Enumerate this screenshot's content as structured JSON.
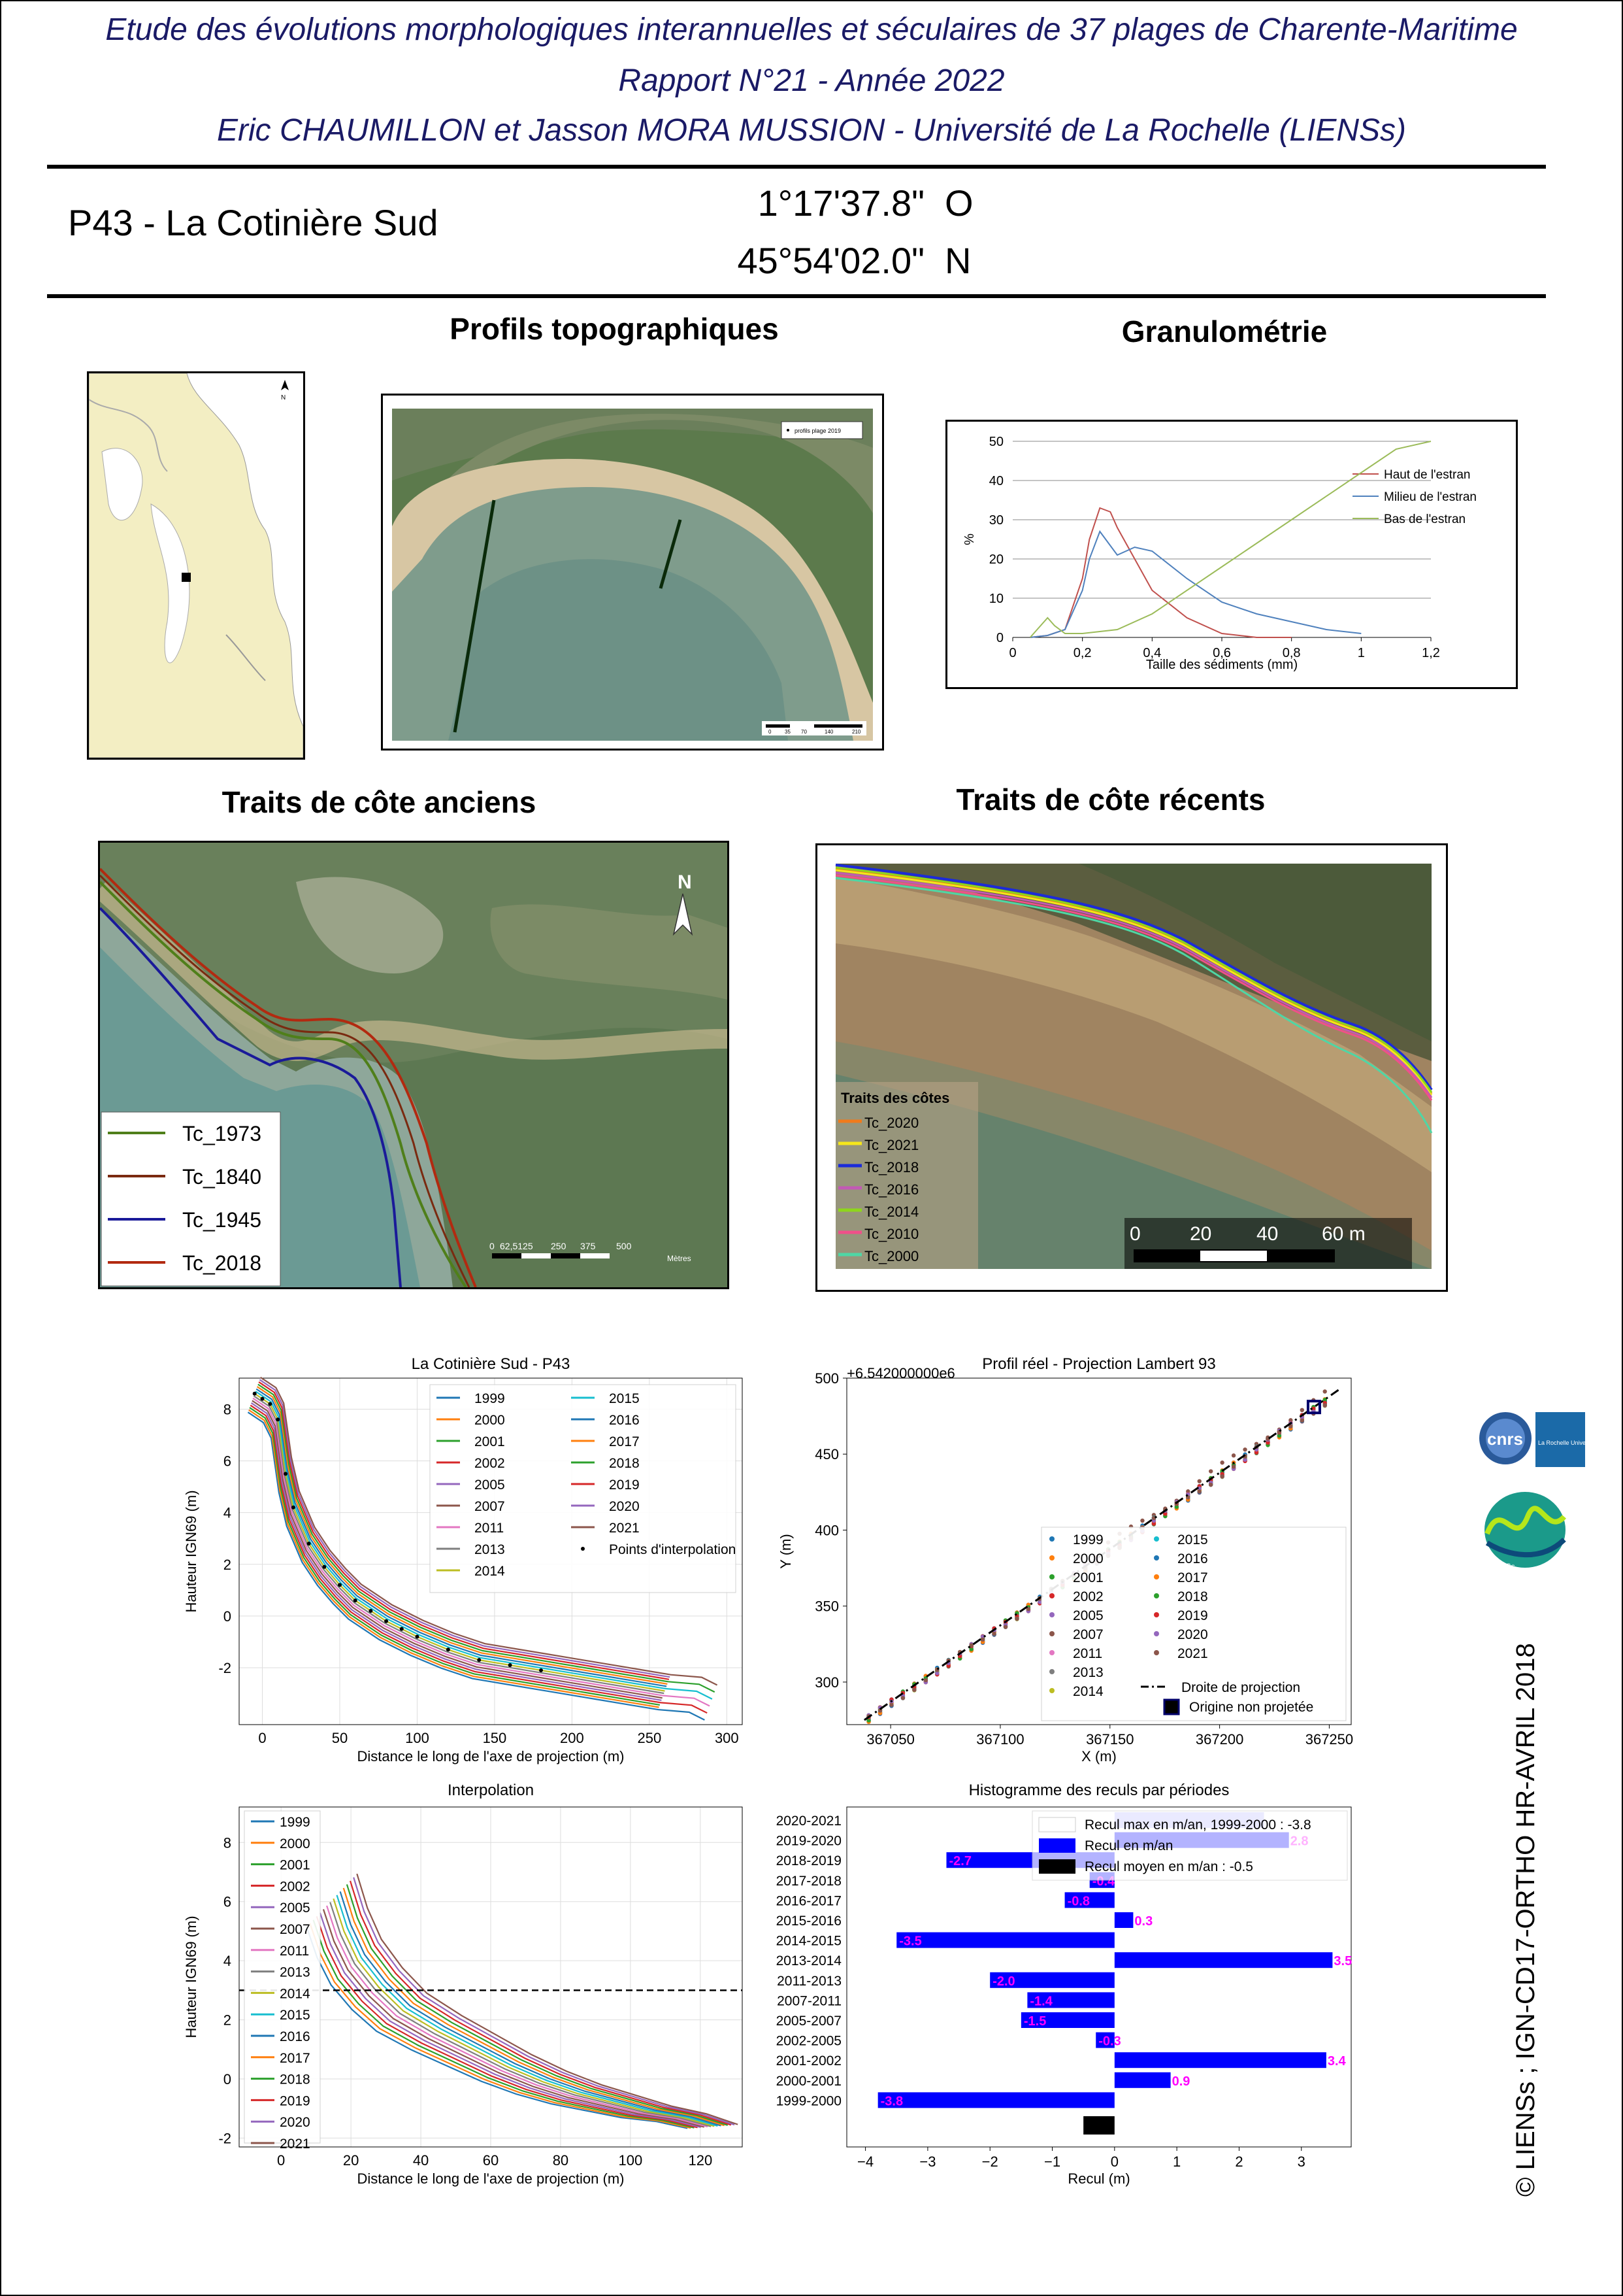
{
  "header": {
    "line1": "Etude des évolutions morphologiques interannuelles et séculaires de 37 plages de Charente-Maritime",
    "line2": "Rapport N°21 - Année 2022",
    "line3": "Eric CHAUMILLON et Jasson MORA MUSSION - Université de La Rochelle (LIENSs)"
  },
  "site": {
    "id_name": "P43 -  La Cotinière Sud",
    "lon": "1°17'37.8\"",
    "lon_dir": "O",
    "lat": "45°54'02.0\"",
    "lat_dir": "N"
  },
  "sections": {
    "profils": "Profils topographiques",
    "granulo": "Granulométrie",
    "anciens": "Traits de côte anciens",
    "recents": "Traits de côte récents"
  },
  "locator_map": {
    "north": "N"
  },
  "profile_map": {
    "legend": "profils plage 2019",
    "scale": [
      "0",
      "35",
      "70",
      "140",
      "210"
    ]
  },
  "granulometry_chart": {
    "chart_data": {
      "type": "line",
      "title": "",
      "xlabel": "Taille des sédiments (mm)",
      "ylabel": "%",
      "xlim": [
        0,
        1.2
      ],
      "ylim": [
        0,
        50
      ],
      "xticks": [
        "0",
        "0,2",
        "0,4",
        "0,6",
        "0,8",
        "1",
        "1,2"
      ],
      "yticks": [
        "0",
        "10",
        "20",
        "30",
        "40",
        "50"
      ],
      "grid": "horizontal",
      "legend_position": "right",
      "series": [
        {
          "name": "Haut de l'estran",
          "color": "#c0504d",
          "x": [
            0.05,
            0.1,
            0.15,
            0.2,
            0.22,
            0.25,
            0.28,
            0.3,
            0.35,
            0.4,
            0.5,
            0.6,
            0.7,
            0.8
          ],
          "y": [
            0,
            0.5,
            2,
            15,
            25,
            33,
            32,
            28,
            20,
            12,
            5,
            1,
            0,
            0
          ]
        },
        {
          "name": "Milieu de l'estran",
          "color": "#4f81bd",
          "x": [
            0.05,
            0.1,
            0.15,
            0.2,
            0.22,
            0.25,
            0.3,
            0.35,
            0.4,
            0.5,
            0.6,
            0.7,
            0.8,
            0.9,
            1.0
          ],
          "y": [
            0,
            0.5,
            2,
            12,
            20,
            27,
            21,
            23,
            22,
            15,
            9,
            6,
            4,
            2,
            1
          ]
        },
        {
          "name": "Bas de l'estran",
          "color": "#9bbb59",
          "x": [
            0.05,
            0.08,
            0.1,
            0.12,
            0.15,
            0.2,
            0.3,
            0.4,
            0.6,
            0.8,
            1.0,
            1.1,
            1.2
          ],
          "y": [
            0,
            3,
            5,
            3,
            1,
            1,
            2,
            6,
            18,
            30,
            42,
            48,
            52
          ]
        }
      ]
    }
  },
  "old_coastlines": {
    "north": "N",
    "legend": [
      "Tc_1973",
      "Tc_1840",
      "Tc_1945",
      "Tc_2018"
    ],
    "colors": [
      "#4f7f1a",
      "#7a2a10",
      "#1a1a99",
      "#b22a10"
    ],
    "scale": [
      "0",
      "62,5125",
      "250",
      "375",
      "500"
    ],
    "scale_unit": "Mètres"
  },
  "recent_coastlines": {
    "legend_title": "Traits des côtes",
    "legend": [
      "Tc_2020",
      "Tc_2021",
      "Tc_2018",
      "Tc_2016",
      "Tc_2014",
      "Tc_2010",
      "Tc_2000"
    ],
    "colors": [
      "#f07b1b",
      "#f5e61b",
      "#1b2bd9",
      "#c25ab5",
      "#8ed61b",
      "#f0508a",
      "#4fd6a5"
    ],
    "scale": [
      "0",
      "20",
      "40",
      "60 m"
    ]
  },
  "profiles_chart": {
    "chart_data": {
      "type": "line",
      "title": "La Cotinière  Sud - P43",
      "xlabel": "Distance le long de l'axe de projection (m)",
      "ylabel": "Hauteur IGN69 (m)",
      "xlim": [
        -15,
        310
      ],
      "ylim": [
        -4.2,
        9.2
      ],
      "xticks": [
        "0",
        "50",
        "100",
        "150",
        "200",
        "250",
        "300"
      ],
      "yticks": [
        "-2",
        "0",
        "2",
        "4",
        "6",
        "8"
      ],
      "grid": true,
      "legend_position": "upper-right",
      "series": [
        {
          "name": "1999",
          "color": "#1f77b4"
        },
        {
          "name": "2000",
          "color": "#ff7f0e"
        },
        {
          "name": "2001",
          "color": "#2ca02c"
        },
        {
          "name": "2002",
          "color": "#d62728"
        },
        {
          "name": "2005",
          "color": "#9467bd"
        },
        {
          "name": "2007",
          "color": "#8c564b"
        },
        {
          "name": "2011",
          "color": "#e377c2"
        },
        {
          "name": "2013",
          "color": "#7f7f7f"
        },
        {
          "name": "2014",
          "color": "#bcbd22"
        },
        {
          "name": "2015",
          "color": "#17becf"
        },
        {
          "name": "2016",
          "color": "#1f77b4"
        },
        {
          "name": "2017",
          "color": "#ff7f0e"
        },
        {
          "name": "2018",
          "color": "#2ca02c"
        },
        {
          "name": "2019",
          "color": "#d62728"
        },
        {
          "name": "2020",
          "color": "#9467bd"
        },
        {
          "name": "2021",
          "color": "#8c564b"
        }
      ],
      "points_label": "Points d'interpolation",
      "envelope": {
        "x": [
          -5,
          0,
          5,
          10,
          15,
          20,
          30,
          40,
          50,
          60,
          70,
          80,
          90,
          100,
          120,
          140,
          160,
          180,
          200,
          220,
          240,
          260,
          280,
          290
        ],
        "y": [
          8.6,
          8.4,
          8.2,
          7.6,
          5.5,
          4.2,
          2.8,
          1.9,
          1.2,
          0.6,
          0.2,
          -0.2,
          -0.5,
          -0.8,
          -1.3,
          -1.7,
          -1.9,
          -2.1,
          -2.3,
          -2.5,
          -2.7,
          -2.9,
          -3.0,
          -3.3
        ]
      }
    }
  },
  "projection_chart": {
    "chart_data": {
      "type": "scatter",
      "title": "Profil réel - Projection Lambert 93",
      "offset_label": "+6.542000000e6",
      "xlabel": "X (m)",
      "ylabel": "Y (m)",
      "xlim": [
        367030,
        367260
      ],
      "ylim": [
        272,
        500
      ],
      "xticks": [
        "367050",
        "367100",
        "367150",
        "367200",
        "367250"
      ],
      "yticks": [
        "300",
        "350",
        "400",
        "450",
        "500"
      ],
      "grid": false,
      "legend_position": "lower-right",
      "series_names": [
        "1999",
        "2000",
        "2001",
        "2002",
        "2005",
        "2007",
        "2011",
        "2013",
        "2014",
        "2015",
        "2016",
        "2017",
        "2018",
        "2019",
        "2020",
        "2021"
      ],
      "line_label": "Droite de projection",
      "origin_label": "Origine non projetée",
      "line": {
        "x": [
          367038,
          367255
        ],
        "y": [
          275,
          493
        ]
      },
      "origin": {
        "x": 367243,
        "y": 481
      }
    }
  },
  "interpolation_chart": {
    "chart_data": {
      "type": "line",
      "title": "Interpolation",
      "xlabel": "Distance le long de l'axe de projection (m)",
      "ylabel": "Hauteur IGN69 (m)",
      "xlim": [
        -12,
        132
      ],
      "ylim": [
        -2.3,
        9.2
      ],
      "xticks": [
        "0",
        "20",
        "40",
        "60",
        "80",
        "100",
        "120"
      ],
      "yticks": [
        "-2",
        "0",
        "2",
        "4",
        "6",
        "8"
      ],
      "grid": true,
      "legend_position": "upper-left",
      "hline_y": 3,
      "series_names": [
        "1999",
        "2000",
        "2001",
        "2002",
        "2005",
        "2007",
        "2011",
        "2013",
        "2014",
        "2015",
        "2016",
        "2017",
        "2018",
        "2019",
        "2020",
        "2021"
      ]
    }
  },
  "histogram_chart": {
    "chart_data": {
      "type": "bar",
      "orientation": "horizontal",
      "title": "Histogramme des reculs par périodes",
      "xlabel": "Recul (m)",
      "xlim": [
        -4.3,
        3.8
      ],
      "xticks": [
        "−4",
        "−3",
        "−2",
        "−1",
        "0",
        "1",
        "2",
        "3"
      ],
      "categories": [
        "2020-2021",
        "2019-2020",
        "2018-2019",
        "2017-2018",
        "2016-2017",
        "2015-2016",
        "2014-2015",
        "2013-2014",
        "2011-2013",
        "2007-2011",
        "2005-2007",
        "2002-2005",
        "2001-2002",
        "2000-2001",
        "1999-2000"
      ],
      "values": [
        2.4,
        2.8,
        -2.7,
        -0.4,
        -0.8,
        0.3,
        -3.5,
        3.5,
        -2.0,
        -1.4,
        -1.5,
        -0.3,
        3.4,
        0.9,
        -3.8
      ],
      "value_labels": [
        "",
        "2.8",
        "-2.7",
        "-0.4",
        "-0.8",
        "0.3",
        "-3.5",
        "3.5",
        "-2.0",
        "-1.4",
        "-1.5",
        "-0.3",
        "3.4",
        "0.9",
        "-3.8"
      ],
      "mean": -0.5,
      "legend": [
        "Recul max en m/an, 1999-2000 : -3.8",
        "Recul en m/an",
        "Recul moyen en m/an : -0.5"
      ],
      "legend_position": "upper-right",
      "bar_color": "#0000ff",
      "label_color": "#ff00ff"
    }
  },
  "logos": {
    "cnrs": "cnrs",
    "univ": "La Rochelle Université",
    "lienss": "LIENSs"
  },
  "copyright": "© LIENSs ; IGN-CD17-ORTHO HR-AVRIL 2018"
}
